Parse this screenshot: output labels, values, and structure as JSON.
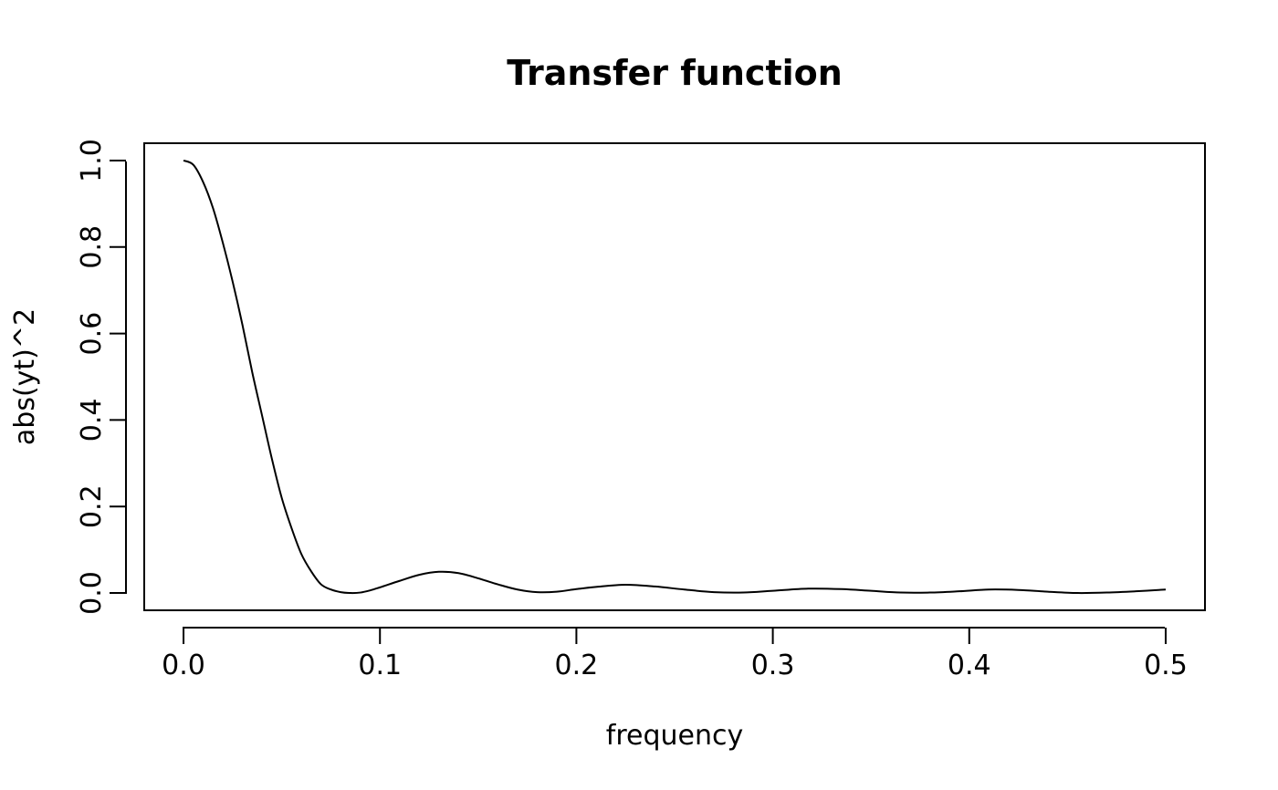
{
  "chart_data": {
    "type": "line",
    "title": "Transfer function",
    "xlabel": "frequency",
    "ylabel": "abs(yt)^2",
    "xlim": [
      -0.02,
      0.52
    ],
    "ylim": [
      -0.04,
      1.04
    ],
    "xticks": [
      0.0,
      0.1,
      0.2,
      0.3,
      0.4,
      0.5
    ],
    "xtick_labels": [
      "0.0",
      "0.1",
      "0.2",
      "0.3",
      "0.4",
      "0.5"
    ],
    "yticks": [
      0.0,
      0.2,
      0.4,
      0.6,
      0.8,
      1.0
    ],
    "ytick_labels": [
      "0.0",
      "0.2",
      "0.4",
      "0.6",
      "0.8",
      "1.0"
    ],
    "grid": false,
    "series": [
      {
        "color": "#000000",
        "x": [
          0.0,
          0.005,
          0.01,
          0.015,
          0.02,
          0.025,
          0.03,
          0.035,
          0.04,
          0.045,
          0.05,
          0.055,
          0.06,
          0.065,
          0.07,
          0.075,
          0.08,
          0.085,
          0.09,
          0.095,
          0.1,
          0.11,
          0.12,
          0.13,
          0.14,
          0.15,
          0.16,
          0.17,
          0.18,
          0.19,
          0.2,
          0.21,
          0.225,
          0.24,
          0.255,
          0.27,
          0.285,
          0.3,
          0.318,
          0.335,
          0.35,
          0.365,
          0.38,
          0.395,
          0.41,
          0.425,
          0.44,
          0.455,
          0.47,
          0.485,
          0.5
        ],
        "y": [
          1.0,
          0.99,
          0.95,
          0.89,
          0.81,
          0.72,
          0.62,
          0.51,
          0.41,
          0.31,
          0.22,
          0.15,
          0.09,
          0.05,
          0.02,
          0.008,
          0.002,
          0.0,
          0.001,
          0.006,
          0.013,
          0.028,
          0.042,
          0.049,
          0.046,
          0.034,
          0.02,
          0.008,
          0.002,
          0.003,
          0.009,
          0.014,
          0.019,
          0.015,
          0.008,
          0.002,
          0.001,
          0.005,
          0.01,
          0.009,
          0.005,
          0.001,
          0.001,
          0.004,
          0.008,
          0.007,
          0.003,
          0.0,
          0.001,
          0.004,
          0.008
        ]
      }
    ]
  }
}
